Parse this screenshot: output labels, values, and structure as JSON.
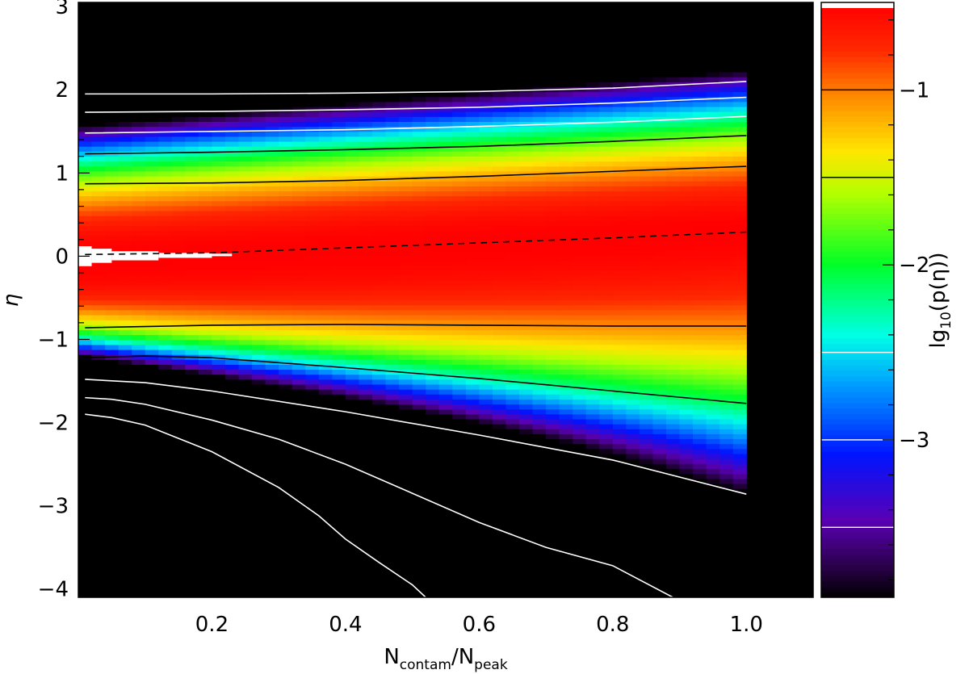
{
  "chart_data": {
    "type": "heatmap",
    "xlabel": "N_contam/N_peak",
    "xlabel_parts": {
      "base1": "N",
      "sub1": "contam",
      "slash": "/",
      "base2": "N",
      "sub2": "peak"
    },
    "ylabel": "η",
    "colorbar_label": "lg10(p(η))",
    "colorbar_label_parts": {
      "pre": "lg",
      "sub": "10",
      "post": "(p(η))"
    },
    "xlim": [
      0.0,
      1.1
    ],
    "ylim": [
      -4.1,
      3.05
    ],
    "clim": [
      -3.9,
      -0.5
    ],
    "x_ticks": [
      0.2,
      0.4,
      0.6,
      0.8,
      1.0
    ],
    "x_tick_labels": [
      "0.2",
      "0.4",
      "0.6",
      "0.8",
      "1.0"
    ],
    "y_ticks": [
      -4,
      -3,
      -2,
      -1,
      0,
      1,
      2,
      3
    ],
    "y_tick_labels": [
      "−4",
      "−3",
      "−2",
      "−1",
      "0",
      "1",
      "2",
      "3"
    ],
    "colorbar_ticks": [
      -3,
      -2,
      -1
    ],
    "colorbar_tick_labels": [
      "−3",
      "−2",
      "−1"
    ],
    "colorscale": "rainbow (black → violet → blue → cyan → green → yellow → orange → red, white at top)",
    "grid": false,
    "contour_levels": [
      {
        "level": -3.5,
        "color": "#ffffff",
        "style": "solid"
      },
      {
        "level": -3.0,
        "color": "#ffffff",
        "style": "solid"
      },
      {
        "level": -2.5,
        "color": "#ffffff",
        "style": "solid"
      },
      {
        "level": -1.5,
        "color": "#000000",
        "style": "solid"
      },
      {
        "level": -1.0,
        "color": "#000000",
        "style": "solid"
      }
    ],
    "contours": [
      {
        "color": "#ffffff",
        "style": "solid",
        "points": [
          [
            0.01,
            1.95
          ],
          [
            0.2,
            1.95
          ],
          [
            0.4,
            1.96
          ],
          [
            0.6,
            1.98
          ],
          [
            0.8,
            2.02
          ],
          [
            1.0,
            2.1
          ]
        ]
      },
      {
        "color": "#ffffff",
        "style": "solid",
        "points": [
          [
            0.01,
            1.73
          ],
          [
            0.2,
            1.74
          ],
          [
            0.4,
            1.76
          ],
          [
            0.6,
            1.79
          ],
          [
            0.8,
            1.84
          ],
          [
            1.0,
            1.91
          ]
        ]
      },
      {
        "color": "#ffffff",
        "style": "solid",
        "points": [
          [
            0.01,
            1.48
          ],
          [
            0.2,
            1.5
          ],
          [
            0.4,
            1.52
          ],
          [
            0.6,
            1.56
          ],
          [
            0.8,
            1.61
          ],
          [
            1.0,
            1.68
          ]
        ]
      },
      {
        "color": "#000000",
        "style": "solid",
        "points": [
          [
            0.01,
            1.23
          ],
          [
            0.2,
            1.25
          ],
          [
            0.4,
            1.28
          ],
          [
            0.6,
            1.32
          ],
          [
            0.8,
            1.38
          ],
          [
            1.0,
            1.45
          ]
        ]
      },
      {
        "color": "#000000",
        "style": "solid",
        "points": [
          [
            0.01,
            0.87
          ],
          [
            0.2,
            0.88
          ],
          [
            0.4,
            0.91
          ],
          [
            0.6,
            0.96
          ],
          [
            0.8,
            1.02
          ],
          [
            1.0,
            1.08
          ]
        ]
      },
      {
        "color": "#000000",
        "style": "dashed",
        "points": [
          [
            0.01,
            0.02
          ],
          [
            0.2,
            0.04
          ],
          [
            0.4,
            0.1
          ],
          [
            0.6,
            0.16
          ],
          [
            0.8,
            0.22
          ],
          [
            1.0,
            0.29
          ]
        ]
      },
      {
        "color": "#000000",
        "style": "solid",
        "points": [
          [
            0.01,
            -0.86
          ],
          [
            0.2,
            -0.83
          ],
          [
            0.4,
            -0.82
          ],
          [
            0.6,
            -0.83
          ],
          [
            0.8,
            -0.84
          ],
          [
            1.0,
            -0.84
          ]
        ]
      },
      {
        "color": "#000000",
        "style": "solid",
        "points": [
          [
            0.01,
            -1.22
          ],
          [
            0.1,
            -1.2
          ],
          [
            0.2,
            -1.22
          ],
          [
            0.4,
            -1.34
          ],
          [
            0.6,
            -1.47
          ],
          [
            0.8,
            -1.62
          ],
          [
            1.0,
            -1.77
          ]
        ]
      },
      {
        "color": "#ffffff",
        "style": "solid",
        "points": [
          [
            0.01,
            -1.48
          ],
          [
            0.1,
            -1.52
          ],
          [
            0.2,
            -1.62
          ],
          [
            0.4,
            -1.87
          ],
          [
            0.6,
            -2.15
          ],
          [
            0.8,
            -2.45
          ],
          [
            1.0,
            -2.86
          ]
        ]
      },
      {
        "color": "#ffffff",
        "style": "solid",
        "points": [
          [
            0.01,
            -1.7
          ],
          [
            0.05,
            -1.72
          ],
          [
            0.1,
            -1.78
          ],
          [
            0.2,
            -1.97
          ],
          [
            0.3,
            -2.2
          ],
          [
            0.4,
            -2.5
          ],
          [
            0.5,
            -2.85
          ],
          [
            0.6,
            -3.2
          ],
          [
            0.7,
            -3.5
          ],
          [
            0.8,
            -3.72
          ],
          [
            0.89,
            -4.1
          ]
        ]
      },
      {
        "color": "#ffffff",
        "style": "solid",
        "points": [
          [
            0.01,
            -1.9
          ],
          [
            0.05,
            -1.94
          ],
          [
            0.1,
            -2.03
          ],
          [
            0.2,
            -2.35
          ],
          [
            0.3,
            -2.78
          ],
          [
            0.36,
            -3.12
          ],
          [
            0.4,
            -3.4
          ],
          [
            0.45,
            -3.68
          ],
          [
            0.5,
            -3.95
          ],
          [
            0.52,
            -4.1
          ]
        ]
      }
    ],
    "density_model": {
      "peak_log_p": -0.5,
      "center": {
        "at_x0": 0.0,
        "at_x1": 0.3
      },
      "upper_width": {
        "at_x0": 0.85,
        "at_x1": 1.05
      },
      "lower_width": {
        "at_x0": 0.8,
        "at_x1": 1.6
      },
      "lower_exponent": {
        "at_x0": 3.0,
        "at_x1": 1.8
      }
    }
  }
}
